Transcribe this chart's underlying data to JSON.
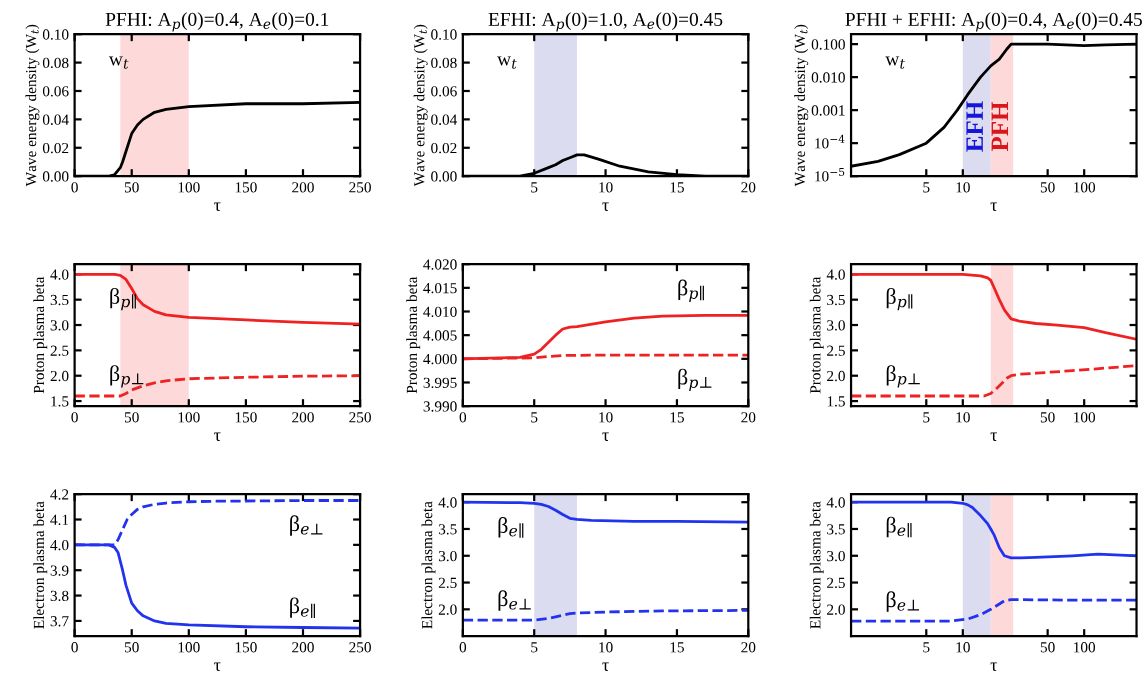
{
  "chart_data": [
    {
      "type": "line",
      "title": "PFHI: A$_{p}$(0)=0.4, A$_{e}$(0)=0.1",
      "xlabel": "τ",
      "ylabel": "Wave energy density (W$_{t}$)",
      "xlim": [
        0,
        250
      ],
      "xticks": [
        0,
        50,
        100,
        150,
        200,
        250
      ],
      "ylim": [
        0,
        0.1
      ],
      "yticks": [
        {
          "value": 0,
          "label": "0.00"
        },
        {
          "value": 0.02,
          "label": "0.02"
        },
        {
          "value": 0.04,
          "label": "0.04"
        },
        {
          "value": 0.06,
          "label": "0.06"
        },
        {
          "value": 0.08,
          "label": "0.08"
        },
        {
          "value": 0.1,
          "label": "0.10"
        }
      ],
      "series": [
        {
          "color": "#000000",
          "line_style": "solid",
          "x": [
            0,
            30,
            35,
            40,
            42,
            46,
            50,
            55,
            60,
            70,
            80,
            100,
            150,
            200,
            250
          ],
          "values": [
            0,
            0,
            0.001,
            0.006,
            0.01,
            0.02,
            0.03,
            0.036,
            0.04,
            0.045,
            0.047,
            0.049,
            0.051,
            0.051,
            0.052
          ]
        }
      ],
      "bands": [
        {
          "axis": "x",
          "from": 40,
          "to": 100,
          "color": "#fdd9da"
        }
      ],
      "annotations": [
        "w$_{t}$"
      ]
    },
    {
      "type": "line",
      "title": "EFHI: A$_{p}$(0)=1.0, A$_{e}$(0)=0.45",
      "xlabel": "τ",
      "ylabel": "Wave energy density (W$_{t}$)",
      "xlim": [
        0,
        20
      ],
      "xticks": [
        5,
        10,
        15,
        20
      ],
      "ylim": [
        0,
        0.1
      ],
      "yticks": [
        {
          "value": 0,
          "label": "0.00"
        },
        {
          "value": 0.02,
          "label": "0.02"
        },
        {
          "value": 0.04,
          "label": "0.04"
        },
        {
          "value": 0.06,
          "label": "0.06"
        },
        {
          "value": 0.08,
          "label": "0.08"
        },
        {
          "value": 0.1,
          "label": "0.10"
        }
      ],
      "series": [
        {
          "color": "#000000",
          "line_style": "solid",
          "x": [
            0,
            4,
            5,
            6,
            6.5,
            7,
            7.5,
            8,
            8.5,
            9.5,
            11,
            13,
            15,
            17,
            20
          ],
          "values": [
            0,
            0,
            0.002,
            0.006,
            0.008,
            0.011,
            0.013,
            0.015,
            0.015,
            0.012,
            0.007,
            0.003,
            0.001,
            0,
            0
          ]
        }
      ],
      "bands": [
        {
          "axis": "x",
          "from": 5,
          "to": 8,
          "color": "#dcdcf0"
        }
      ],
      "annotations": [
        "w$_{t}$"
      ]
    },
    {
      "type": "line",
      "title": "PFHI + EFHI: A$_{p}$(0)=0.4, A$_{e}$(0)=0.45",
      "xlabel": "τ",
      "ylabel": "Wave energy density (W$_{t}$)",
      "log": "xy",
      "xlim": [
        1.2,
        270
      ],
      "xticks": [
        5,
        10,
        50,
        100
      ],
      "ylim": [
        1e-05,
        0.2
      ],
      "yticks": [
        {
          "value": 1e-05,
          "label": "10$^{−5}$"
        },
        {
          "value": 0.0001,
          "label": "10$^{−4}$"
        },
        {
          "value": 0.001,
          "label": "0.001"
        },
        {
          "value": 0.01,
          "label": "0.010"
        },
        {
          "value": 0.1,
          "label": "0.100"
        }
      ],
      "series": [
        {
          "color": "#000000",
          "line_style": "solid",
          "x": [
            1.2,
            2,
            3,
            5,
            7,
            9,
            11,
            14,
            17,
            20,
            23,
            25,
            30,
            50,
            100,
            150,
            270
          ],
          "values": [
            2e-05,
            2.8e-05,
            4.5e-05,
            0.0001,
            0.0003,
            0.001,
            0.003,
            0.01,
            0.022,
            0.035,
            0.07,
            0.1,
            0.1,
            0.1,
            0.09,
            0.095,
            0.1
          ]
        }
      ],
      "bands": [
        {
          "axis": "x",
          "from": 10,
          "to": 17,
          "color": "#dcdcf0",
          "label": "EFH"
        },
        {
          "axis": "x",
          "from": 17,
          "to": 26,
          "color": "#fdd9da",
          "label": "PFH"
        }
      ],
      "annotations": [
        "w$_{t}$"
      ]
    },
    {
      "type": "line",
      "xlabel": "τ",
      "ylabel": "Proton plasma beta",
      "xlim": [
        0,
        250
      ],
      "xticks": [
        0,
        50,
        100,
        150,
        200,
        250
      ],
      "ylim": [
        1.4,
        4.2
      ],
      "yticks": [
        1.5,
        {
          "value": 2,
          "label": "2.0"
        },
        2.5,
        {
          "value": 3,
          "label": "3.0"
        },
        3.5,
        {
          "value": 4,
          "label": "4.0"
        }
      ],
      "series": [
        {
          "name": "β$_{p∥}$",
          "color": "#ee2222",
          "line_style": "solid",
          "x": [
            0,
            35,
            40,
            45,
            50,
            55,
            60,
            70,
            80,
            100,
            150,
            200,
            250
          ],
          "values": [
            4.0,
            4.0,
            3.98,
            3.9,
            3.72,
            3.52,
            3.4,
            3.27,
            3.2,
            3.15,
            3.1,
            3.05,
            3.02
          ]
        },
        {
          "name": "β$_{p⊥}$",
          "color": "#ee2222",
          "line_style": "dashed",
          "x": [
            0,
            40,
            45,
            50,
            60,
            70,
            80,
            100,
            150,
            200,
            250
          ],
          "values": [
            1.6,
            1.6,
            1.65,
            1.72,
            1.8,
            1.86,
            1.9,
            1.94,
            1.97,
            1.99,
            2.0
          ]
        }
      ],
      "bands": [
        {
          "axis": "x",
          "from": 40,
          "to": 100,
          "color": "#fdd9da"
        }
      ]
    },
    {
      "type": "line",
      "xlabel": "τ",
      "ylabel": "Proton plasma beta",
      "xlim": [
        0,
        20
      ],
      "xticks": [
        0,
        5,
        10,
        15,
        20
      ],
      "ylim": [
        3.99,
        4.02
      ],
      "yticks": [
        {
          "value": 3.99,
          "label": "3.990"
        },
        {
          "value": 3.995,
          "label": "3.995"
        },
        {
          "value": 4.0,
          "label": "4.000"
        },
        {
          "value": 4.005,
          "label": "4.005"
        },
        {
          "value": 4.01,
          "label": "4.010"
        },
        {
          "value": 4.015,
          "label": "4.015"
        },
        {
          "value": 4.02,
          "label": "4.020"
        }
      ],
      "series": [
        {
          "name": "β$_{p∥}$",
          "color": "#ee2222",
          "line_style": "solid",
          "x": [
            0,
            4,
            5,
            5.5,
            6,
            6.5,
            7,
            7.5,
            8,
            10,
            12,
            14,
            17,
            20
          ],
          "values": [
            4.0,
            4.0003,
            4.001,
            4.002,
            4.0035,
            4.005,
            4.0063,
            4.0067,
            4.0068,
            4.0078,
            4.0086,
            4.009,
            4.0092,
            4.0092
          ]
        },
        {
          "name": "β$_{p⊥}$",
          "color": "#ee2222",
          "line_style": "dashed",
          "x": [
            0,
            5,
            6,
            7,
            10,
            15,
            20
          ],
          "values": [
            4.0,
            4.0002,
            4.0005,
            4.0007,
            4.0008,
            4.0008,
            4.0008
          ]
        }
      ]
    },
    {
      "type": "line",
      "xlabel": "τ",
      "ylabel": "Proton plasma beta",
      "log": "x",
      "xlim": [
        1.2,
        270
      ],
      "xticks": [
        5,
        10,
        50,
        100
      ],
      "ylim": [
        1.4,
        4.2
      ],
      "yticks": [
        1.5,
        {
          "value": 2,
          "label": "2.0"
        },
        2.5,
        {
          "value": 3,
          "label": "3.0"
        },
        3.5,
        {
          "value": 4,
          "label": "4.0"
        }
      ],
      "series": [
        {
          "name": "β$_{p∥}$",
          "color": "#ee2222",
          "line_style": "solid",
          "x": [
            1.2,
            10,
            14,
            16,
            17,
            18,
            20,
            22,
            25,
            30,
            40,
            60,
            100,
            150,
            270
          ],
          "values": [
            4.0,
            4.0,
            3.97,
            3.93,
            3.88,
            3.75,
            3.5,
            3.3,
            3.12,
            3.07,
            3.03,
            3.0,
            2.95,
            2.85,
            2.72
          ]
        },
        {
          "name": "β$_{p⊥}$",
          "color": "#ee2222",
          "line_style": "dashed",
          "x": [
            1.2,
            15,
            17,
            19,
            21,
            23,
            25,
            30,
            40,
            80,
            150,
            270
          ],
          "values": [
            1.6,
            1.6,
            1.65,
            1.75,
            1.85,
            1.95,
            2.0,
            2.03,
            2.05,
            2.1,
            2.15,
            2.2
          ]
        }
      ],
      "bands": [
        {
          "axis": "x",
          "from": 17,
          "to": 26,
          "color": "#fdd9da"
        }
      ]
    },
    {
      "type": "line",
      "xlabel": "τ",
      "ylabel": "Electron plasma beta",
      "xlim": [
        0,
        250
      ],
      "xticks": [
        0,
        50,
        100,
        150,
        200,
        250
      ],
      "ylim": [
        3.64,
        4.2
      ],
      "yticks": [
        3.7,
        3.8,
        3.9,
        {
          "value": 4,
          "label": "4.0"
        },
        4.1,
        4.2
      ],
      "series": [
        {
          "name": "β$_{e⊥}$",
          "color": "#2233ee",
          "line_style": "dashed",
          "x": [
            0,
            30,
            35,
            38,
            42,
            46,
            50,
            55,
            60,
            70,
            80,
            100,
            120,
            150,
            200,
            250
          ],
          "values": [
            4.0,
            4.0,
            4.0,
            4.02,
            4.06,
            4.1,
            4.12,
            4.14,
            4.15,
            4.16,
            4.165,
            4.17,
            4.172,
            4.173,
            4.175,
            4.175
          ]
        },
        {
          "name": "β$_{e∥}$",
          "color": "#2233ee",
          "line_style": "solid",
          "x": [
            0,
            30,
            35,
            38,
            42,
            45,
            50,
            55,
            60,
            70,
            80,
            100,
            150,
            200,
            250
          ],
          "values": [
            4.0,
            4.0,
            3.99,
            3.97,
            3.9,
            3.84,
            3.77,
            3.74,
            3.72,
            3.7,
            3.69,
            3.684,
            3.677,
            3.674,
            3.672
          ]
        }
      ]
    },
    {
      "type": "line",
      "xlabel": "τ",
      "ylabel": "Electron plasma beta",
      "xlim": [
        0,
        20
      ],
      "xticks": [
        0,
        5,
        10,
        15,
        20
      ],
      "ylim": [
        1.5,
        4.15
      ],
      "yticks": [
        {
          "value": 2,
          "label": "2.0"
        },
        2.5,
        {
          "value": 3,
          "label": "3.0"
        },
        3.5,
        {
          "value": 4,
          "label": "4.0"
        }
      ],
      "series": [
        {
          "name": "β$_{e∥}$",
          "color": "#2233ee",
          "line_style": "solid",
          "x": [
            0,
            4,
            5,
            5.5,
            6,
            6.5,
            7,
            7.5,
            8,
            9,
            12,
            15,
            20
          ],
          "values": [
            4.0,
            3.99,
            3.98,
            3.96,
            3.92,
            3.85,
            3.77,
            3.7,
            3.68,
            3.66,
            3.64,
            3.64,
            3.63
          ]
        },
        {
          "name": "β$_{e⊥}$",
          "color": "#2233ee",
          "line_style": "dashed",
          "x": [
            0,
            5,
            6,
            6.5,
            7,
            7.5,
            8,
            10,
            14,
            20
          ],
          "values": [
            1.8,
            1.8,
            1.83,
            1.86,
            1.89,
            1.92,
            1.93,
            1.95,
            1.97,
            1.98
          ]
        }
      ],
      "bands": [
        {
          "axis": "x",
          "from": 5,
          "to": 8,
          "color": "#dcdcf0"
        }
      ]
    },
    {
      "type": "line",
      "xlabel": "τ",
      "ylabel": "Electron plasma beta",
      "log": "x",
      "xlim": [
        1.2,
        270
      ],
      "xticks": [
        5,
        10,
        50,
        100
      ],
      "ylim": [
        1.5,
        4.15
      ],
      "yticks": [
        {
          "value": 2,
          "label": "2.0"
        },
        2.5,
        {
          "value": 3,
          "label": "3.0"
        },
        3.5,
        {
          "value": 4,
          "label": "4.0"
        }
      ],
      "series": [
        {
          "name": "β$_{e∥}$",
          "color": "#2233ee",
          "line_style": "solid",
          "x": [
            1.2,
            8,
            10,
            11,
            12,
            14,
            16,
            17,
            18,
            20,
            22,
            25,
            30,
            40,
            80,
            130,
            200,
            270
          ],
          "values": [
            4.0,
            4.0,
            3.98,
            3.95,
            3.9,
            3.75,
            3.6,
            3.5,
            3.4,
            3.15,
            3.0,
            2.96,
            2.96,
            2.97,
            3.0,
            3.03,
            3.01,
            3.0
          ]
        },
        {
          "name": "β$_{e⊥}$",
          "color": "#2233ee",
          "line_style": "dashed",
          "x": [
            1.2,
            8,
            11,
            14,
            17,
            20,
            22,
            25,
            30,
            100,
            270
          ],
          "values": [
            1.78,
            1.78,
            1.82,
            1.9,
            2.0,
            2.1,
            2.16,
            2.18,
            2.18,
            2.17,
            2.17
          ]
        }
      ],
      "bands": [
        {
          "axis": "x",
          "from": 10,
          "to": 17,
          "color": "#dcdcf0"
        },
        {
          "axis": "x",
          "from": 17,
          "to": 26,
          "color": "#fdd9da"
        }
      ]
    }
  ]
}
